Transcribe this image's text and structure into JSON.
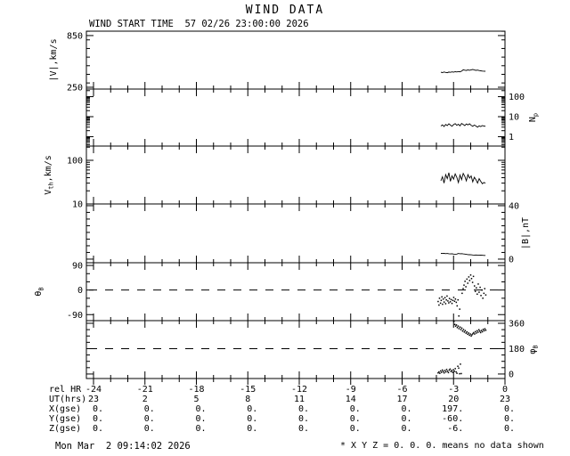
{
  "title": "WIND DATA",
  "subtitle": "WIND START TIME  57 02/26 23:00:00 2026",
  "footer": {
    "left": "Mon Mar  2 09:14:02 2026",
    "right": "* X Y Z = 0. 0. 0. means no data shown"
  },
  "colors": {
    "foreground": "#000000",
    "background": "#ffffff"
  },
  "chart_data": {
    "type": "line",
    "title": "WIND DATA",
    "grid": false,
    "x_axis": {
      "label": "rel HR",
      "range": [
        -24.4,
        0
      ],
      "major_ticks": [
        -24,
        -21,
        -18,
        -15,
        -12,
        -9,
        -6,
        -3,
        0
      ],
      "minor_step": 1
    },
    "panels": [
      {
        "name": "speed",
        "ylabel_segments": [
          [
            "t",
            "|V|,km/s"
          ]
        ],
        "side": "left",
        "scale": "linear",
        "range": [
          229,
          901
        ],
        "ticks": [
          [
            250,
            "250"
          ],
          [
            850,
            "850"
          ]
        ],
        "minor_step": 100,
        "style": "line",
        "series": {
          "x0": -3.74,
          "dx": 0.093,
          "v": [
            424,
            420,
            427,
            422,
            419,
            426,
            423,
            429,
            425,
            431,
            427,
            433,
            430,
            437,
            452,
            448,
            445,
            451,
            447,
            452,
            456,
            450,
            446,
            449,
            444,
            441,
            438,
            437,
            436
          ]
        }
      },
      {
        "name": "proton-density",
        "ylabel_segments": [
          [
            "t",
            "N"
          ],
          [
            "s",
            "p"
          ]
        ],
        "side": "right",
        "scale": "log",
        "range": [
          0.34,
          240
        ],
        "ticks": [
          [
            1,
            "1"
          ],
          [
            10,
            "10"
          ],
          [
            100,
            "100"
          ]
        ],
        "style": "line",
        "series": {
          "x0": -3.74,
          "dx": 0.093,
          "v": [
            3.4,
            3.9,
            3.2,
            4.1,
            3.6,
            4.4,
            3.8,
            3.3,
            4.0,
            4.5,
            3.7,
            4.2,
            3.5,
            4.6,
            4.1,
            3.6,
            4.3,
            3.9,
            4.4,
            3.7,
            3.3,
            3.8,
            3.4,
            3.0,
            3.5,
            3.2,
            3.6,
            3.4,
            3.3
          ]
        }
      },
      {
        "name": "thermal-speed",
        "ylabel_segments": [
          [
            "t",
            "V"
          ],
          [
            "s",
            "th"
          ],
          [
            "t",
            ",km/s"
          ]
        ],
        "side": "left",
        "scale": "log",
        "range": [
          10,
          212
        ],
        "ticks": [
          [
            10,
            "10"
          ],
          [
            100,
            "100"
          ]
        ],
        "style": "line",
        "series": {
          "x0": -3.74,
          "dx": 0.093,
          "v": [
            34,
            42,
            30,
            47,
            38,
            52,
            33,
            44,
            37,
            49,
            41,
            31,
            46,
            36,
            50,
            43,
            34,
            47,
            39,
            44,
            32,
            41,
            36,
            30,
            38,
            33,
            29,
            31,
            30
          ]
        }
      },
      {
        "name": "field-magnitude",
        "ylabel_segments": [
          [
            "t",
            "|B|,nT"
          ]
        ],
        "side": "right",
        "scale": "linear",
        "range": [
          -2.7,
          41.3
        ],
        "ticks": [
          [
            0,
            "0"
          ],
          [
            40,
            "40"
          ]
        ],
        "minor_step": 5,
        "style": "line",
        "series": {
          "x0": -3.74,
          "dx": 0.093,
          "v": [
            4.3,
            4.2,
            4.3,
            4.1,
            4.2,
            4.0,
            3.9,
            4.0,
            3.8,
            3.7,
            3.8,
            4.2,
            4.0,
            4.1,
            3.9,
            3.8,
            3.6,
            3.4,
            3.3,
            3.2,
            3.1,
            3.0,
            3.1,
            3.0,
            2.9,
            3.0,
            2.9,
            2.8,
            2.8
          ]
        }
      },
      {
        "name": "theta-b",
        "ylabel_segments": [
          [
            "t",
            "θ"
          ],
          [
            "s",
            "B"
          ]
        ],
        "side": "left",
        "scale": "linear",
        "range": [
          -112,
          100
        ],
        "ticks": [
          [
            -90,
            "-90"
          ],
          [
            0,
            "0"
          ],
          [
            90,
            "90"
          ]
        ],
        "minor_step": 30,
        "dashed_at": 0,
        "style": "scatter",
        "points": [
          [
            -3.9,
            -42
          ],
          [
            -3.85,
            -55
          ],
          [
            -3.82,
            -30
          ],
          [
            -3.76,
            -48
          ],
          [
            -3.72,
            -38
          ],
          [
            -3.68,
            -25
          ],
          [
            -3.64,
            -52
          ],
          [
            -3.6,
            -33
          ],
          [
            -3.55,
            -44
          ],
          [
            -3.5,
            -28
          ],
          [
            -3.46,
            -50
          ],
          [
            -3.42,
            -36
          ],
          [
            -3.38,
            -22
          ],
          [
            -3.33,
            -40
          ],
          [
            -3.28,
            -47
          ],
          [
            -3.24,
            -31
          ],
          [
            -3.19,
            -43
          ],
          [
            -3.14,
            -35
          ],
          [
            -3.09,
            -49
          ],
          [
            -3.04,
            -38
          ],
          [
            -2.99,
            -27
          ],
          [
            -2.94,
            -41
          ],
          [
            -2.89,
            -33
          ],
          [
            -2.84,
            -45
          ],
          [
            -2.79,
            -58
          ],
          [
            -2.74,
            -36
          ],
          [
            -2.69,
            -95
          ],
          [
            -2.64,
            -70
          ],
          [
            -2.5,
            -12
          ],
          [
            -2.44,
            5
          ],
          [
            -2.39,
            18
          ],
          [
            -2.33,
            32
          ],
          [
            -2.28,
            12
          ],
          [
            -2.22,
            40
          ],
          [
            -2.17,
            25
          ],
          [
            -2.11,
            48
          ],
          [
            -2.06,
            35
          ],
          [
            -2.0,
            55
          ],
          [
            -1.95,
            42
          ],
          [
            -1.89,
            28
          ],
          [
            -1.84,
            50
          ],
          [
            -1.78,
            15
          ],
          [
            -1.73,
            -5
          ],
          [
            -1.67,
            8
          ],
          [
            -1.62,
            -15
          ],
          [
            -1.56,
            22
          ],
          [
            -1.51,
            -8
          ],
          [
            -1.45,
            10
          ],
          [
            -1.4,
            -20
          ],
          [
            -1.34,
            0
          ],
          [
            -1.29,
            -30
          ],
          [
            -1.23,
            -12
          ],
          [
            -1.18,
            5
          ],
          [
            -1.12,
            -18
          ]
        ]
      },
      {
        "name": "phi-b",
        "ylabel_segments": [
          [
            "t",
            "φ"
          ],
          [
            "s",
            "B"
          ]
        ],
        "side": "right",
        "scale": "linear",
        "range": [
          -32,
          379
        ],
        "ticks": [
          [
            0,
            "0"
          ],
          [
            180,
            "180"
          ],
          [
            360,
            "360"
          ]
        ],
        "minor_step": 45,
        "dashed_at": 180,
        "style": "scatter",
        "points": [
          [
            -3.9,
            8
          ],
          [
            -3.85,
            15
          ],
          [
            -3.8,
            5
          ],
          [
            -3.75,
            22
          ],
          [
            -3.7,
            12
          ],
          [
            -3.65,
            28
          ],
          [
            -3.6,
            18
          ],
          [
            -3.55,
            8
          ],
          [
            -3.5,
            25
          ],
          [
            -3.45,
            15
          ],
          [
            -3.4,
            32
          ],
          [
            -3.35,
            20
          ],
          [
            -3.3,
            10
          ],
          [
            -3.25,
            28
          ],
          [
            -3.2,
            35
          ],
          [
            -3.15,
            18
          ],
          [
            -3.1,
            25
          ],
          [
            -3.05,
            12
          ],
          [
            -3.0,
            30
          ],
          [
            -2.95,
            20
          ],
          [
            -2.9,
            38
          ],
          [
            -2.85,
            15
          ],
          [
            -2.8,
            5
          ],
          [
            -2.75,
            55
          ],
          [
            -2.7,
            42
          ],
          [
            -2.65,
            2
          ],
          [
            -2.6,
            70
          ],
          [
            -2.55,
            3
          ],
          [
            -2.98,
            372
          ],
          [
            -2.93,
            352
          ],
          [
            -2.88,
            340
          ],
          [
            -2.83,
            348
          ],
          [
            -2.78,
            330
          ],
          [
            -2.73,
            340
          ],
          [
            -2.68,
            322
          ],
          [
            -2.62,
            333
          ],
          [
            -2.57,
            315
          ],
          [
            -2.52,
            326
          ],
          [
            -2.47,
            305
          ],
          [
            -2.42,
            316
          ],
          [
            -2.37,
            298
          ],
          [
            -2.32,
            308
          ],
          [
            -2.27,
            290
          ],
          [
            -2.22,
            299
          ],
          [
            -2.17,
            282
          ],
          [
            -2.12,
            291
          ],
          [
            -2.07,
            275
          ],
          [
            -2.02,
            284
          ],
          [
            -1.97,
            270
          ],
          [
            -1.92,
            279
          ],
          [
            -1.87,
            287
          ],
          [
            -1.82,
            294
          ],
          [
            -1.77,
            284
          ],
          [
            -1.72,
            301
          ],
          [
            -1.67,
            291
          ],
          [
            -1.62,
            307
          ],
          [
            -1.57,
            297
          ],
          [
            -1.52,
            314
          ],
          [
            -1.47,
            304
          ],
          [
            -1.42,
            294
          ],
          [
            -1.37,
            309
          ],
          [
            -1.32,
            300
          ],
          [
            -1.27,
            317
          ],
          [
            -1.22,
            307
          ],
          [
            -1.17,
            321
          ],
          [
            -1.12,
            311
          ]
        ]
      }
    ],
    "bottom_table": {
      "rows": [
        {
          "label": "rel HR",
          "align": "center",
          "values": [
            "-24",
            "-21",
            "-18",
            "-15",
            "-12",
            "-9",
            "-6",
            "-3",
            "0"
          ]
        },
        {
          "label": "UT(hrs)",
          "align": "center",
          "values": [
            "23",
            "2",
            "5",
            "8",
            "11",
            "14",
            "17",
            "20",
            "23"
          ]
        },
        {
          "label": "X(gse)",
          "align": "right",
          "values": [
            "0.",
            "0.",
            "0.",
            "0.",
            "0.",
            "0.",
            "0.",
            "197.",
            "0."
          ]
        },
        {
          "label": "Y(gse)",
          "align": "right",
          "values": [
            "0.",
            "0.",
            "0.",
            "0.",
            "0.",
            "0.",
            "0.",
            "-60.",
            "0."
          ]
        },
        {
          "label": "Z(gse)",
          "align": "right",
          "values": [
            "0.",
            "0.",
            "0.",
            "0.",
            "0.",
            "0.",
            "0.",
            "-6.",
            "0."
          ]
        }
      ]
    }
  }
}
